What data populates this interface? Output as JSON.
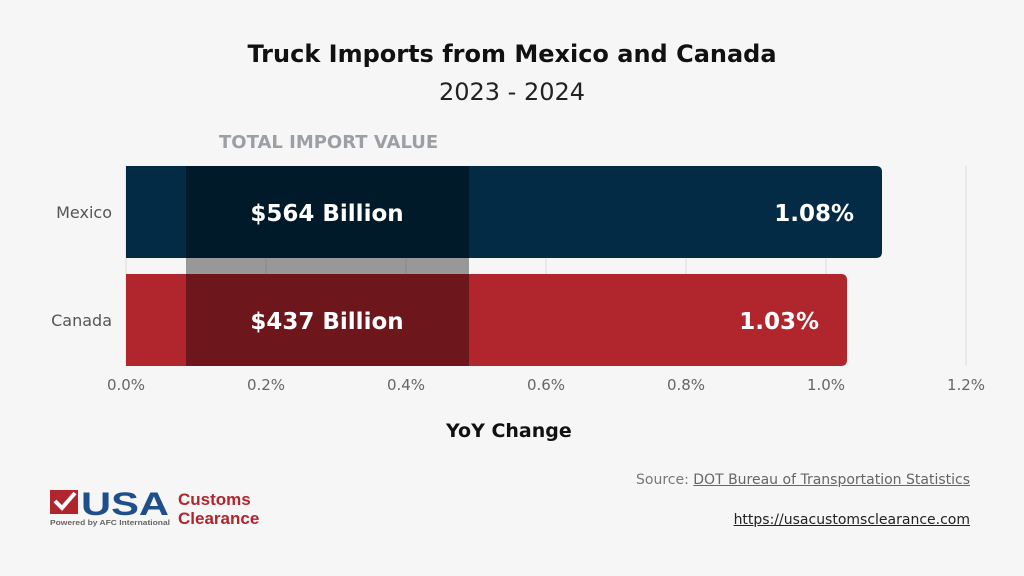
{
  "chart_data": {
    "type": "bar",
    "orientation": "horizontal",
    "title": "Truck Imports from Mexico and Canada",
    "subtitle": "2023 - 2024",
    "xlabel": "YoY Change",
    "categories": [
      "Mexico",
      "Canada"
    ],
    "values": [
      1.08,
      1.03
    ],
    "value_labels": [
      "1.08%",
      "1.03%"
    ],
    "overlay_header": "TOTAL IMPORT VALUE",
    "overlay_labels": [
      "$564 Billion",
      "$437 Billion"
    ],
    "xlim": [
      0,
      1.2
    ],
    "xticks": [
      "0.0%",
      "0.2%",
      "0.4%",
      "0.6%",
      "0.8%",
      "1.0%",
      "1.2%"
    ],
    "grid": true,
    "colors": {
      "Mexico": "#032b45",
      "Canada": "#b1252c"
    }
  },
  "footer": {
    "source_label": "Source:",
    "source_link": "DOT Bureau of Transportation Statistics",
    "url": "https://usacustomsclearance.com"
  },
  "logo": {
    "text": "USA Customs Clearance",
    "tagline": "Powered by AFC International"
  }
}
